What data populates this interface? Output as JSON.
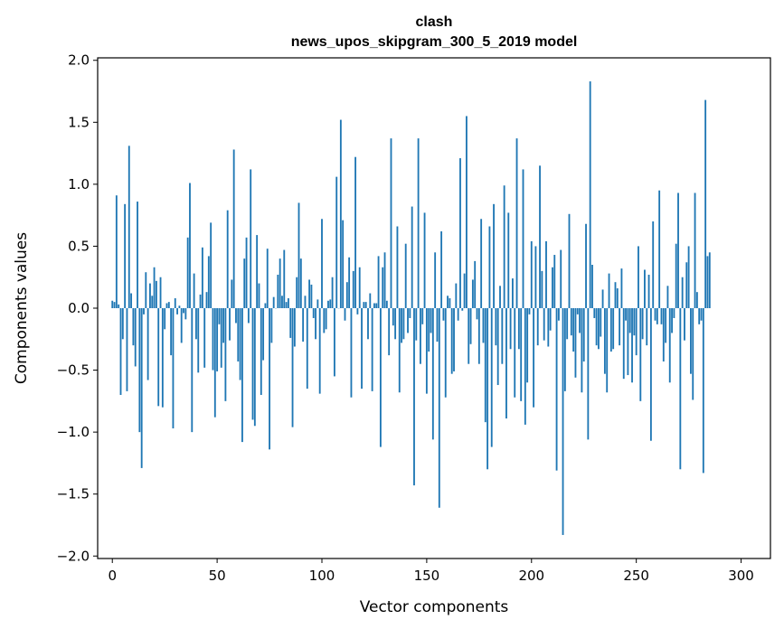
{
  "chart_data": {
    "type": "bar",
    "title": "clash",
    "subtitle": "news_upos_skipgram_300_5_2019 model",
    "xlabel": "Vector components",
    "ylabel": "Components values",
    "xlim": [
      -7,
      314
    ],
    "ylim": [
      -2.02,
      2.02
    ],
    "xticks": [
      0,
      50,
      100,
      150,
      200,
      250,
      300
    ],
    "yticks": [
      2.0,
      1.5,
      1.0,
      0.5,
      0.0,
      -0.5,
      -1.0,
      -1.5,
      -2.0
    ],
    "ytick_labels": [
      "2.0",
      "1.5",
      "1.0",
      "0.5",
      "0.0",
      "−0.5",
      "−1.0",
      "−1.5",
      "−2.0"
    ],
    "bar_color": "#1f77b4",
    "grid": false,
    "values": [
      0.06,
      0.05,
      0.91,
      0.03,
      -0.7,
      -0.25,
      0.84,
      -0.67,
      1.31,
      0.12,
      -0.3,
      -0.47,
      0.86,
      -1.0,
      -1.29,
      -0.05,
      0.29,
      -0.58,
      0.2,
      0.1,
      0.33,
      0.22,
      -0.79,
      0.25,
      -0.8,
      -0.17,
      0.04,
      0.05,
      -0.38,
      -0.97,
      0.08,
      -0.05,
      0.02,
      -0.28,
      -0.04,
      -0.09,
      0.57,
      1.01,
      -1.0,
      0.28,
      -0.25,
      -0.52,
      0.11,
      0.49,
      -0.48,
      0.13,
      0.42,
      0.69,
      -0.5,
      -0.88,
      -0.51,
      -0.13,
      -0.48,
      -0.28,
      -0.75,
      0.79,
      -0.26,
      0.23,
      1.28,
      -0.12,
      -0.43,
      -0.58,
      -1.08,
      0.4,
      0.57,
      -0.12,
      1.12,
      -0.9,
      -0.95,
      0.59,
      0.2,
      -0.7,
      -0.42,
      0.04,
      0.48,
      -1.14,
      -0.28,
      0.09,
      0.0,
      0.27,
      0.4,
      0.1,
      0.47,
      0.05,
      0.08,
      -0.24,
      -0.96,
      -0.31,
      0.25,
      0.85,
      0.4,
      -0.27,
      0.1,
      -0.65,
      0.23,
      0.19,
      -0.08,
      -0.25,
      0.07,
      -0.69,
      0.72,
      -0.2,
      -0.17,
      0.06,
      0.07,
      0.25,
      -0.55,
      1.06,
      0.0,
      1.52,
      0.71,
      -0.1,
      0.21,
      0.41,
      -0.72,
      0.3,
      1.22,
      -0.05,
      0.33,
      -0.65,
      0.05,
      0.05,
      -0.25,
      0.12,
      -0.67,
      0.04,
      0.04,
      0.42,
      -1.12,
      0.33,
      0.45,
      0.06,
      -0.38,
      1.37,
      -0.14,
      -0.25,
      0.66,
      -0.68,
      -0.28,
      -0.25,
      0.52,
      -0.2,
      -0.08,
      0.82,
      -1.43,
      -0.26,
      1.37,
      -0.45,
      -0.13,
      0.77,
      -0.69,
      -0.35,
      -0.2,
      -1.06,
      0.45,
      -0.27,
      -1.61,
      0.62,
      -0.1,
      -0.72,
      0.1,
      0.08,
      -0.53,
      -0.51,
      0.2,
      -0.1,
      1.21,
      -0.02,
      0.28,
      1.55,
      -0.45,
      -0.29,
      0.23,
      0.38,
      -0.09,
      -0.45,
      0.72,
      -0.28,
      -0.92,
      -1.3,
      0.66,
      -1.12,
      0.84,
      -0.3,
      -0.62,
      0.18,
      -0.45,
      0.99,
      -0.89,
      0.77,
      -0.33,
      0.24,
      -0.72,
      1.37,
      -0.33,
      -0.75,
      1.12,
      -0.94,
      -0.6,
      -0.05,
      0.54,
      -0.8,
      0.5,
      -0.3,
      1.15,
      0.3,
      -0.26,
      0.54,
      -0.31,
      -0.18,
      0.33,
      0.43,
      -1.31,
      -0.1,
      0.47,
      -1.83,
      -0.67,
      -0.25,
      0.76,
      -0.22,
      -0.35,
      -0.56,
      -0.05,
      -0.2,
      -0.68,
      -0.43,
      0.68,
      -1.06,
      1.83,
      0.35,
      -0.08,
      -0.3,
      -0.33,
      -0.23,
      0.15,
      -0.53,
      -0.68,
      0.28,
      -0.35,
      -0.33,
      0.21,
      0.16,
      -0.3,
      0.32,
      -0.57,
      -0.1,
      -0.54,
      -0.2,
      -0.6,
      -0.22,
      -0.38,
      0.5,
      -0.75,
      -0.25,
      0.31,
      -0.3,
      0.27,
      -1.07,
      0.7,
      -0.1,
      -0.13,
      0.95,
      -0.13,
      -0.43,
      -0.28,
      0.18,
      -0.6,
      -0.2,
      -0.08,
      0.52,
      0.93,
      -1.3,
      0.25,
      -0.26,
      0.37,
      0.5,
      -0.53,
      -0.74,
      0.93,
      0.13,
      -0.13,
      -0.1,
      -1.33,
      1.68,
      0.42,
      0.45
    ]
  }
}
